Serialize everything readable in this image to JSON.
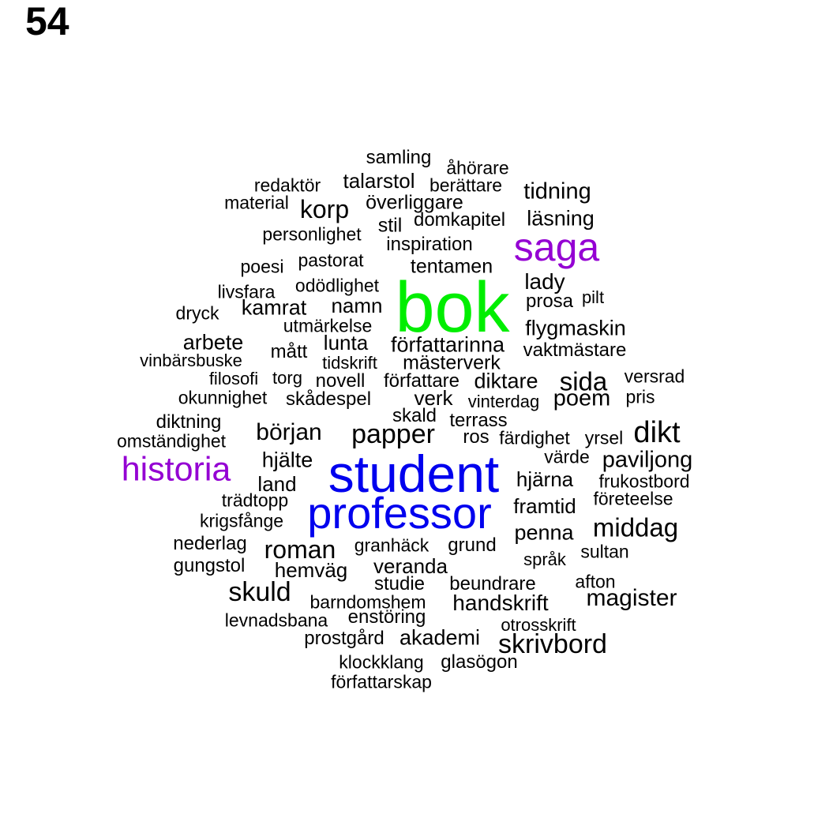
{
  "page_number": "54",
  "colors": {
    "default": "#000000",
    "green": "#00ee00",
    "blue": "#0000ee",
    "purple": "#9400d3"
  },
  "words": [
    {
      "text": "bok",
      "color": "green"
    },
    {
      "text": "student",
      "color": "blue"
    },
    {
      "text": "professor",
      "color": "blue"
    },
    {
      "text": "saga",
      "color": "purple"
    },
    {
      "text": "historia",
      "color": "purple"
    },
    {
      "text": "samling"
    },
    {
      "text": "åhörare"
    },
    {
      "text": "redaktör"
    },
    {
      "text": "talarstol"
    },
    {
      "text": "berättare"
    },
    {
      "text": "tidning"
    },
    {
      "text": "material"
    },
    {
      "text": "korp"
    },
    {
      "text": "överliggare"
    },
    {
      "text": "stil"
    },
    {
      "text": "domkapitel"
    },
    {
      "text": "läsning"
    },
    {
      "text": "personlighet"
    },
    {
      "text": "inspiration"
    },
    {
      "text": "poesi"
    },
    {
      "text": "pastorat"
    },
    {
      "text": "tentamen"
    },
    {
      "text": "lady"
    },
    {
      "text": "livsfara"
    },
    {
      "text": "odödlighet"
    },
    {
      "text": "prosa"
    },
    {
      "text": "pilt"
    },
    {
      "text": "kamrat"
    },
    {
      "text": "namn"
    },
    {
      "text": "dryck"
    },
    {
      "text": "utmärkelse"
    },
    {
      "text": "flygmaskin"
    },
    {
      "text": "arbete"
    },
    {
      "text": "lunta"
    },
    {
      "text": "författarinna"
    },
    {
      "text": "mått"
    },
    {
      "text": "vaktmästare"
    },
    {
      "text": "vinbärsbuske"
    },
    {
      "text": "tidskrift"
    },
    {
      "text": "mästerverk"
    },
    {
      "text": "filosofi"
    },
    {
      "text": "torg"
    },
    {
      "text": "novell"
    },
    {
      "text": "författare"
    },
    {
      "text": "diktare"
    },
    {
      "text": "sida"
    },
    {
      "text": "versrad"
    },
    {
      "text": "okunnighet"
    },
    {
      "text": "skådespel"
    },
    {
      "text": "verk"
    },
    {
      "text": "vinterdag"
    },
    {
      "text": "poem"
    },
    {
      "text": "pris"
    },
    {
      "text": "skald"
    },
    {
      "text": "diktning"
    },
    {
      "text": "terrass"
    },
    {
      "text": "början"
    },
    {
      "text": "papper"
    },
    {
      "text": "dikt"
    },
    {
      "text": "omständighet"
    },
    {
      "text": "ros"
    },
    {
      "text": "färdighet"
    },
    {
      "text": "yrsel"
    },
    {
      "text": "hjälte"
    },
    {
      "text": "värde"
    },
    {
      "text": "paviljong"
    },
    {
      "text": "land"
    },
    {
      "text": "hjärna"
    },
    {
      "text": "frukostbord"
    },
    {
      "text": "trädtopp"
    },
    {
      "text": "företeelse"
    },
    {
      "text": "framtid"
    },
    {
      "text": "krigsfånge"
    },
    {
      "text": "middag"
    },
    {
      "text": "penna"
    },
    {
      "text": "nederlag"
    },
    {
      "text": "roman"
    },
    {
      "text": "granhäck"
    },
    {
      "text": "grund"
    },
    {
      "text": "sultan"
    },
    {
      "text": "gungstol"
    },
    {
      "text": "hemväg"
    },
    {
      "text": "veranda"
    },
    {
      "text": "språk"
    },
    {
      "text": "afton"
    },
    {
      "text": "studie"
    },
    {
      "text": "beundrare"
    },
    {
      "text": "skuld"
    },
    {
      "text": "magister"
    },
    {
      "text": "barndomshem"
    },
    {
      "text": "handskrift"
    },
    {
      "text": "levnadsbana"
    },
    {
      "text": "enstöring"
    },
    {
      "text": "otrosskrift"
    },
    {
      "text": "prostgård"
    },
    {
      "text": "akademi"
    },
    {
      "text": "skrivbord"
    },
    {
      "text": "klockklang"
    },
    {
      "text": "glasögon"
    },
    {
      "text": "författarskap"
    }
  ]
}
